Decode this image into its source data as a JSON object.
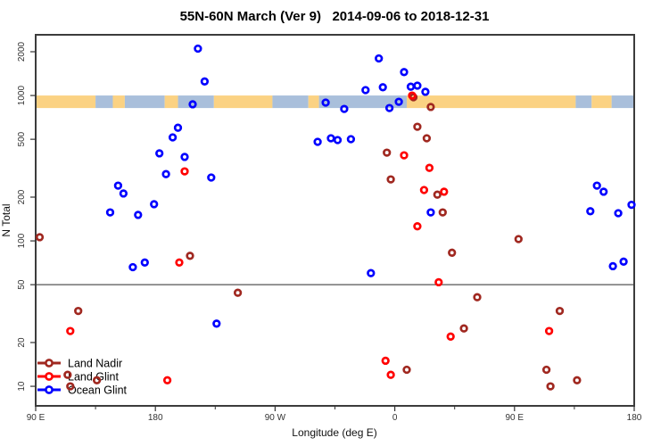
{
  "chart_data": {
    "type": "scatter",
    "title": "55N-60N March (Ver 9)   2014-09-06 to 2018-12-31",
    "xlabel": "Longitude (deg E)",
    "ylabel": "N Total",
    "x_axis": {
      "unit": "degrees east, plotted continuously eastward from 90E (span 450 deg)",
      "range": [
        90,
        540
      ],
      "major_ticks": [
        {
          "value": 90,
          "label": "90 E"
        },
        {
          "value": 180,
          "label": "180"
        },
        {
          "value": 270,
          "label": "90 W"
        },
        {
          "value": 360,
          "label": "0"
        },
        {
          "value": 450,
          "label": "90 E"
        },
        {
          "value": 540,
          "label": "180"
        }
      ],
      "minor_ticks": [
        135,
        225,
        315,
        405,
        495
      ]
    },
    "y_axis": {
      "scale": "log",
      "ticks": [
        2000,
        1000,
        500,
        200,
        100,
        50,
        20,
        10
      ],
      "range": [
        8,
        2400
      ]
    },
    "reference_line": {
      "y": 50,
      "color": "#555555"
    },
    "map_band": {
      "description": "55N-60N land/ocean map strip",
      "N_range": [
        820,
        1000
      ],
      "land_color": "#FBD283",
      "ocean_color": "#A9BFDB",
      "segments": [
        {
          "from": 90,
          "to": 135,
          "type": "land"
        },
        {
          "from": 135,
          "to": 148,
          "type": "ocean"
        },
        {
          "from": 148,
          "to": 157,
          "type": "land"
        },
        {
          "from": 157,
          "to": 187,
          "type": "ocean"
        },
        {
          "from": 187,
          "to": 197,
          "type": "land"
        },
        {
          "from": 197,
          "to": 224,
          "type": "ocean"
        },
        {
          "from": 224,
          "to": 268,
          "type": "land"
        },
        {
          "from": 268,
          "to": 295,
          "type": "ocean"
        },
        {
          "from": 295,
          "to": 303,
          "type": "land"
        },
        {
          "from": 303,
          "to": 369,
          "type": "ocean"
        },
        {
          "from": 369,
          "to": 496,
          "type": "land"
        },
        {
          "from": 496,
          "to": 508,
          "type": "ocean"
        },
        {
          "from": 508,
          "to": 523,
          "type": "land"
        },
        {
          "from": 523,
          "to": 540,
          "type": "ocean"
        }
      ]
    },
    "legend": {
      "position": "bottom-left",
      "entries": [
        "Land Nadir",
        "Land Glint",
        "Ocean Glint"
      ]
    },
    "series": [
      {
        "name": "Land Nadir",
        "color": "#A02820",
        "points": [
          [
            93,
            106
          ],
          [
            114,
            12
          ],
          [
            116,
            10
          ],
          [
            122,
            33
          ],
          [
            136,
            11
          ],
          [
            206,
            79
          ],
          [
            242,
            44
          ],
          [
            354,
            405
          ],
          [
            357,
            265
          ],
          [
            369,
            13
          ],
          [
            374,
            973
          ],
          [
            377,
            610
          ],
          [
            384,
            508
          ],
          [
            387,
            834
          ],
          [
            392,
            208
          ],
          [
            396,
            157
          ],
          [
            403,
            83
          ],
          [
            412,
            25
          ],
          [
            422,
            41
          ],
          [
            453,
            103
          ],
          [
            474,
            13
          ],
          [
            477,
            10
          ],
          [
            484,
            33
          ],
          [
            497,
            11
          ]
        ]
      },
      {
        "name": "Land Glint",
        "color": "#FF0000",
        "points": [
          [
            116,
            24
          ],
          [
            189,
            11
          ],
          [
            198,
            71
          ],
          [
            202,
            301
          ],
          [
            353,
            15
          ],
          [
            357,
            12
          ],
          [
            367,
            388
          ],
          [
            373,
            1000
          ],
          [
            377,
            126
          ],
          [
            382,
            224
          ],
          [
            386,
            318
          ],
          [
            393,
            52
          ],
          [
            397,
            218
          ],
          [
            402,
            22
          ],
          [
            476,
            24
          ]
        ]
      },
      {
        "name": "Ocean Glint",
        "color": "#0000FF",
        "points": [
          [
            146,
            157
          ],
          [
            152,
            240
          ],
          [
            156,
            212
          ],
          [
            163,
            66
          ],
          [
            167,
            151
          ],
          [
            172,
            71
          ],
          [
            179,
            179
          ],
          [
            183,
            400
          ],
          [
            188,
            288
          ],
          [
            193,
            515
          ],
          [
            197,
            600
          ],
          [
            202,
            378
          ],
          [
            208,
            870
          ],
          [
            212,
            2100
          ],
          [
            217,
            1250
          ],
          [
            222,
            273
          ],
          [
            226,
            27
          ],
          [
            302,
            480
          ],
          [
            308,
            894
          ],
          [
            312,
            508
          ],
          [
            317,
            494
          ],
          [
            322,
            809
          ],
          [
            327,
            501
          ],
          [
            338,
            1090
          ],
          [
            342,
            60
          ],
          [
            348,
            1800
          ],
          [
            351,
            1140
          ],
          [
            356,
            820
          ],
          [
            363,
            906
          ],
          [
            367,
            1450
          ],
          [
            372,
            1150
          ],
          [
            377,
            1170
          ],
          [
            383,
            1060
          ],
          [
            387,
            157
          ],
          [
            507,
            160
          ],
          [
            512,
            240
          ],
          [
            517,
            218
          ],
          [
            524,
            67
          ],
          [
            528,
            155
          ],
          [
            532,
            72
          ],
          [
            538,
            177
          ]
        ]
      }
    ]
  }
}
